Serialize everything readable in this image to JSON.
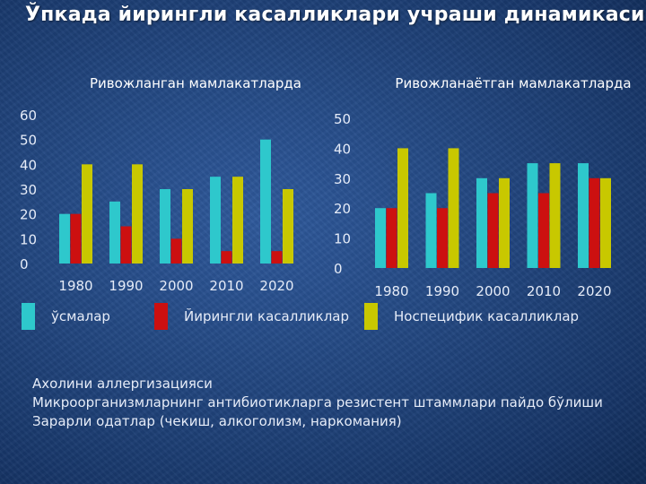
{
  "slide": {
    "title": "Ўпкада йирингли касалликлари учраши динамикаси"
  },
  "colors": {
    "series_1": "#2ec8cc",
    "series_2": "#cc1010",
    "series_3": "#c8c800"
  },
  "legend": [
    {
      "label": "ўсмалар",
      "color": "#2ec8cc"
    },
    {
      "label": "Йирингли касалликлар",
      "color": "#cc1010"
    },
    {
      "label": "Носпецифик касалликлар",
      "color": "#c8c800"
    }
  ],
  "notes": [
    "Ахолини аллергизацияси",
    "Микроорганизмларнинг антибиотикларга резистент штаммлари пайдо бўлиши",
    "Зарарли одатлар (чекиш, алкоголизм, наркомания)"
  ],
  "chart_data": [
    {
      "type": "bar",
      "title": "Ривожланган мамлакатларда",
      "categories": [
        "1980",
        "1990",
        "2000",
        "2010",
        "2020"
      ],
      "series": [
        {
          "values": [
            20,
            25,
            30,
            35,
            50
          ]
        },
        {
          "values": [
            20,
            15,
            10,
            5,
            5
          ]
        },
        {
          "values": [
            40,
            40,
            30,
            35,
            30
          ]
        }
      ],
      "yticks": [
        "0",
        "10",
        "20",
        "30",
        "40",
        "50",
        "60"
      ],
      "ylim": [
        0,
        60
      ],
      "grid": false,
      "legend_position": "bottom"
    },
    {
      "type": "bar",
      "title": "Ривожланаётган мамлакатларда",
      "categories": [
        "1980",
        "1990",
        "2000",
        "2010",
        "2020"
      ],
      "series": [
        {
          "values": [
            20,
            25,
            30,
            35,
            35
          ]
        },
        {
          "values": [
            20,
            20,
            25,
            25,
            30
          ]
        },
        {
          "values": [
            40,
            40,
            30,
            35,
            30
          ]
        }
      ],
      "yticks": [
        "0",
        "10",
        "20",
        "30",
        "40",
        "50"
      ],
      "ylim": [
        0,
        50
      ],
      "grid": false,
      "legend_position": "bottom"
    }
  ]
}
